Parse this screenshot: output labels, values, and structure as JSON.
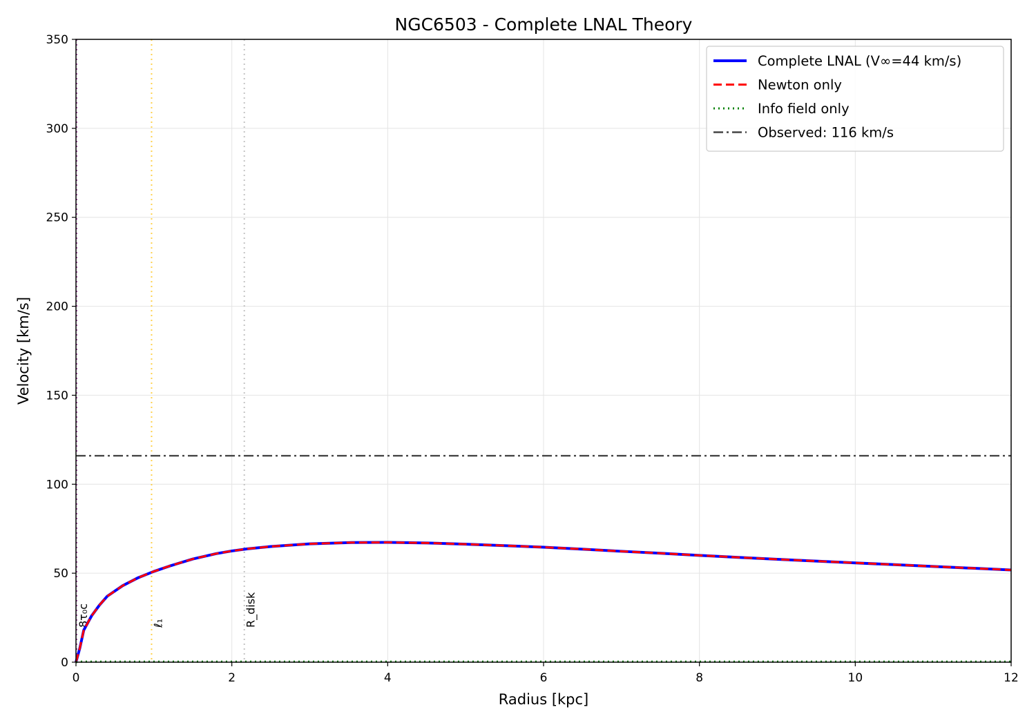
{
  "chart_data": {
    "type": "line",
    "title": "NGC6503 - Complete LNAL Theory",
    "xlabel": "Radius [kpc]",
    "ylabel": "Velocity [km/s]",
    "xlim": [
      0,
      12
    ],
    "ylim": [
      0,
      350
    ],
    "xticks": [
      0,
      2,
      4,
      6,
      8,
      10,
      12
    ],
    "xtick_labels": [
      "0",
      "2",
      "4",
      "6",
      "8",
      "10",
      "12"
    ],
    "yticks": [
      0,
      50,
      100,
      150,
      200,
      250,
      300,
      350
    ],
    "ytick_labels": [
      "0",
      "50",
      "100",
      "150",
      "200",
      "250",
      "300",
      "350"
    ],
    "grid": true,
    "legend_position": "top-right",
    "x": [
      0.0,
      0.05,
      0.1,
      0.15,
      0.2,
      0.3,
      0.4,
      0.5,
      0.6,
      0.8,
      1.0,
      1.2,
      1.5,
      1.8,
      2.0,
      2.2,
      2.5,
      3.0,
      3.5,
      4.0,
      4.5,
      5.0,
      5.5,
      6.0,
      6.5,
      7.0,
      7.5,
      8.0,
      8.5,
      9.0,
      9.5,
      10.0,
      10.5,
      11.0,
      11.5,
      12.0
    ],
    "series": [
      {
        "name": "Complete LNAL (V∞=44 km/s)",
        "color": "#0000ff",
        "style": "solid",
        "values": [
          0,
          8,
          18,
          22,
          26,
          32,
          37,
          40,
          43,
          47.5,
          51,
          54,
          58,
          61,
          62.5,
          63.7,
          65,
          66.5,
          67.2,
          67.3,
          67,
          66.3,
          65.5,
          64.6,
          63.5,
          62.3,
          61.2,
          60,
          58.9,
          57.8,
          56.8,
          55.8,
          54.8,
          53.8,
          52.8,
          51.8
        ]
      },
      {
        "name": "Newton only",
        "color": "#ff0000",
        "style": "dashed",
        "values": [
          0,
          8,
          18,
          22,
          26,
          32,
          37,
          40,
          43,
          47.5,
          51,
          54,
          58,
          61,
          62.5,
          63.7,
          65,
          66.5,
          67.2,
          67.3,
          67,
          66.3,
          65.5,
          64.6,
          63.5,
          62.3,
          61.2,
          60,
          58.9,
          57.8,
          56.8,
          55.8,
          54.8,
          53.8,
          52.8,
          51.8
        ]
      },
      {
        "name": "Info field only",
        "color": "#008000",
        "style": "dotted",
        "values": [
          0,
          0.3,
          0.3,
          0.3,
          0.3,
          0.3,
          0.3,
          0.3,
          0.3,
          0.3,
          0.3,
          0.3,
          0.3,
          0.3,
          0.3,
          0.3,
          0.3,
          0.3,
          0.3,
          0.3,
          0.3,
          0.3,
          0.3,
          0.3,
          0.3,
          0.3,
          0.3,
          0.3,
          0.3,
          0.3,
          0.3,
          0.3,
          0.3,
          0.3,
          0.3,
          0.3
        ]
      }
    ],
    "hlines": [
      {
        "name": "Observed: 116 km/s",
        "y": 116,
        "color": "#444444",
        "style": "dashdot"
      }
    ],
    "vlines": [
      {
        "label": "8τ₀c",
        "x": 0.0,
        "color": "#800080",
        "style": "dotted"
      },
      {
        "label": "ℓ₁",
        "x": 0.97,
        "color": "#ffc000",
        "style": "dotted"
      },
      {
        "label": "R_disk",
        "x": 2.16,
        "color": "#aaaaaa",
        "style": "dotted"
      }
    ]
  }
}
